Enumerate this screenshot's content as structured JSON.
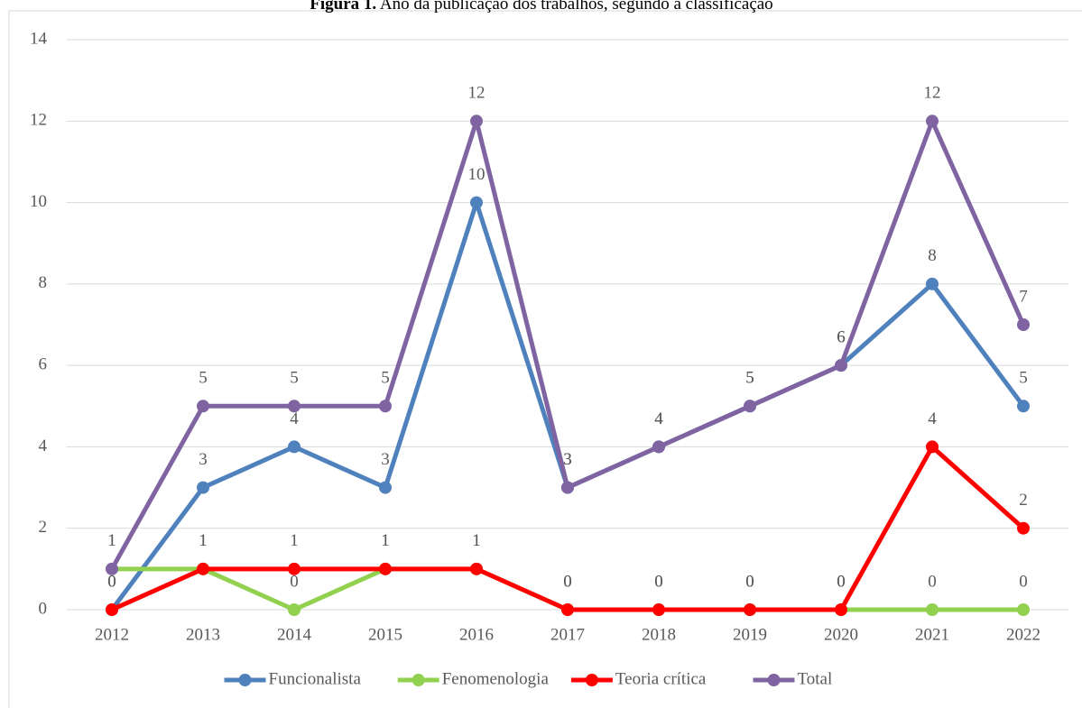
{
  "chart_data": {
    "type": "line",
    "title": {
      "label": "Figura 1.",
      "text": "Ano da publicação dos trabalhos, segundo a classificação"
    },
    "categories": [
      "2012",
      "2013",
      "2014",
      "2015",
      "2016",
      "2017",
      "2018",
      "2019",
      "2020",
      "2021",
      "2022"
    ],
    "series": [
      {
        "name": "Funcionalista",
        "color": "#4f81bd",
        "values": [
          0,
          3,
          4,
          3,
          10,
          3,
          4,
          5,
          6,
          8,
          5
        ]
      },
      {
        "name": "Fenomenologia",
        "color": "#92d050",
        "values": [
          1,
          1,
          0,
          1,
          1,
          0,
          0,
          0,
          0,
          0,
          0
        ]
      },
      {
        "name": "Teoria crítica",
        "color": "#ff0000",
        "values": [
          0,
          1,
          1,
          1,
          1,
          0,
          0,
          0,
          0,
          4,
          2
        ]
      },
      {
        "name": "Total",
        "color": "#8064a2",
        "values": [
          1,
          5,
          5,
          5,
          12,
          3,
          4,
          5,
          6,
          12,
          7
        ]
      }
    ],
    "ylim": [
      0,
      14
    ],
    "yticks": [
      0,
      2,
      4,
      6,
      8,
      10,
      12,
      14
    ],
    "grid": true,
    "legend": "bottom"
  }
}
